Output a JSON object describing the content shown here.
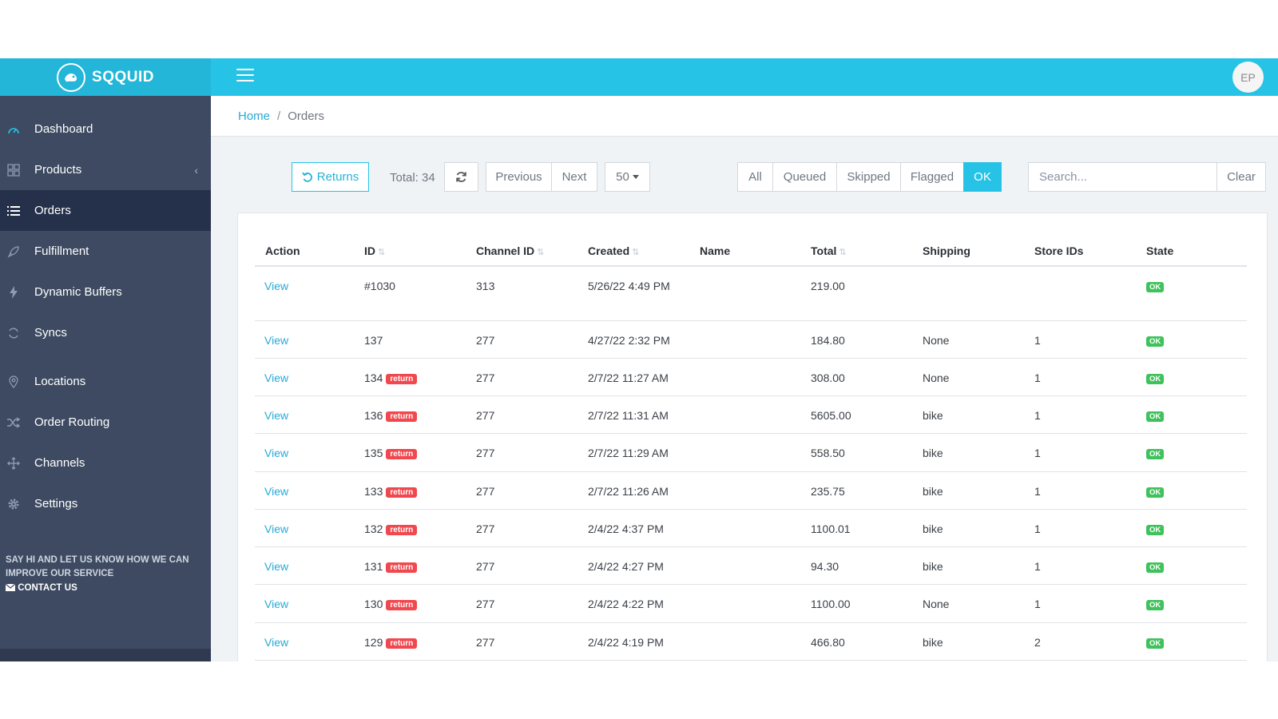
{
  "brand": {
    "name": "SQQUID",
    "logo_icon": "squid-logo-icon"
  },
  "header": {
    "menu_icon": "hamburger-menu-icon",
    "avatar_initials": "EP"
  },
  "colors": {
    "accent": "#26c3e6",
    "sidebar": "#3d4a61",
    "sidebar_active": "#25304a",
    "link": "#26a9d8",
    "return_badge": "#f0484e",
    "ok_badge": "#3fc25c"
  },
  "sidebar": {
    "items": [
      {
        "label": "Dashboard",
        "icon": "speedometer-icon"
      },
      {
        "label": "Products",
        "icon": "grid-icon",
        "caret": "‹"
      },
      {
        "label": "Orders",
        "icon": "list-icon",
        "active": true
      },
      {
        "label": "Fulfillment",
        "icon": "rocket-icon"
      },
      {
        "label": "Dynamic Buffers",
        "icon": "bolt-icon"
      },
      {
        "label": "Syncs",
        "icon": "sync-icon"
      },
      {
        "label": "Locations",
        "icon": "map-pin-icon"
      },
      {
        "label": "Order Routing",
        "icon": "shuffle-icon"
      },
      {
        "label": "Channels",
        "icon": "move-icon"
      },
      {
        "label": "Settings",
        "icon": "gear-icon"
      }
    ],
    "feedback_message": "SAY HI AND LET US KNOW HOW WE CAN IMPROVE OUR SERVICE",
    "contact_label": "CONTACT US",
    "contact_icon": "envelope-icon"
  },
  "breadcrumb": {
    "home": "Home",
    "separator": "/",
    "current": "Orders"
  },
  "toolbar": {
    "returns_label": "Returns",
    "returns_icon": "undo-icon",
    "total_label": "Total: 34",
    "refresh_icon": "refresh-icon",
    "previous_label": "Previous",
    "next_label": "Next",
    "page_size": "50",
    "filters": [
      "All",
      "Queued",
      "Skipped",
      "Flagged",
      "OK"
    ],
    "active_filter": "OK",
    "search_placeholder": "Search...",
    "clear_label": "Clear"
  },
  "table": {
    "columns": [
      "Action",
      "ID",
      "Channel ID",
      "Created",
      "Name",
      "Total",
      "Shipping",
      "Store IDs",
      "State"
    ],
    "sortable": [
      "ID",
      "Channel ID",
      "Created",
      "Total"
    ],
    "rows": [
      {
        "action": "View",
        "id": "#1030",
        "return": false,
        "channel_id": "313",
        "created": "5/26/22 4:49 PM",
        "name": "",
        "total": "219.00",
        "shipping": "",
        "store_ids": "",
        "state": "OK"
      },
      {
        "action": "View",
        "id": "137",
        "return": false,
        "channel_id": "277",
        "created": "4/27/22 2:32 PM",
        "name": "",
        "total": "184.80",
        "shipping": "None",
        "store_ids": "1",
        "state": "OK"
      },
      {
        "action": "View",
        "id": "134",
        "return": true,
        "channel_id": "277",
        "created": "2/7/22 11:27 AM",
        "name": "",
        "total": "308.00",
        "shipping": "None",
        "store_ids": "1",
        "state": "OK"
      },
      {
        "action": "View",
        "id": "136",
        "return": true,
        "channel_id": "277",
        "created": "2/7/22 11:31 AM",
        "name": "",
        "total": "5605.00",
        "shipping": "bike",
        "store_ids": "1",
        "state": "OK"
      },
      {
        "action": "View",
        "id": "135",
        "return": true,
        "channel_id": "277",
        "created": "2/7/22 11:29 AM",
        "name": "",
        "total": "558.50",
        "shipping": "bike",
        "store_ids": "1",
        "state": "OK"
      },
      {
        "action": "View",
        "id": "133",
        "return": true,
        "channel_id": "277",
        "created": "2/7/22 11:26 AM",
        "name": "",
        "total": "235.75",
        "shipping": "bike",
        "store_ids": "1",
        "state": "OK"
      },
      {
        "action": "View",
        "id": "132",
        "return": true,
        "channel_id": "277",
        "created": "2/4/22 4:37 PM",
        "name": "",
        "total": "1100.01",
        "shipping": "bike",
        "store_ids": "1",
        "state": "OK"
      },
      {
        "action": "View",
        "id": "131",
        "return": true,
        "channel_id": "277",
        "created": "2/4/22 4:27 PM",
        "name": "",
        "total": "94.30",
        "shipping": "bike",
        "store_ids": "1",
        "state": "OK"
      },
      {
        "action": "View",
        "id": "130",
        "return": true,
        "channel_id": "277",
        "created": "2/4/22 4:22 PM",
        "name": "",
        "total": "1100.00",
        "shipping": "None",
        "store_ids": "1",
        "state": "OK"
      },
      {
        "action": "View",
        "id": "129",
        "return": true,
        "channel_id": "277",
        "created": "2/4/22 4:19 PM",
        "name": "",
        "total": "466.80",
        "shipping": "bike",
        "store_ids": "2",
        "state": "OK"
      }
    ],
    "return_badge_label": "return"
  }
}
